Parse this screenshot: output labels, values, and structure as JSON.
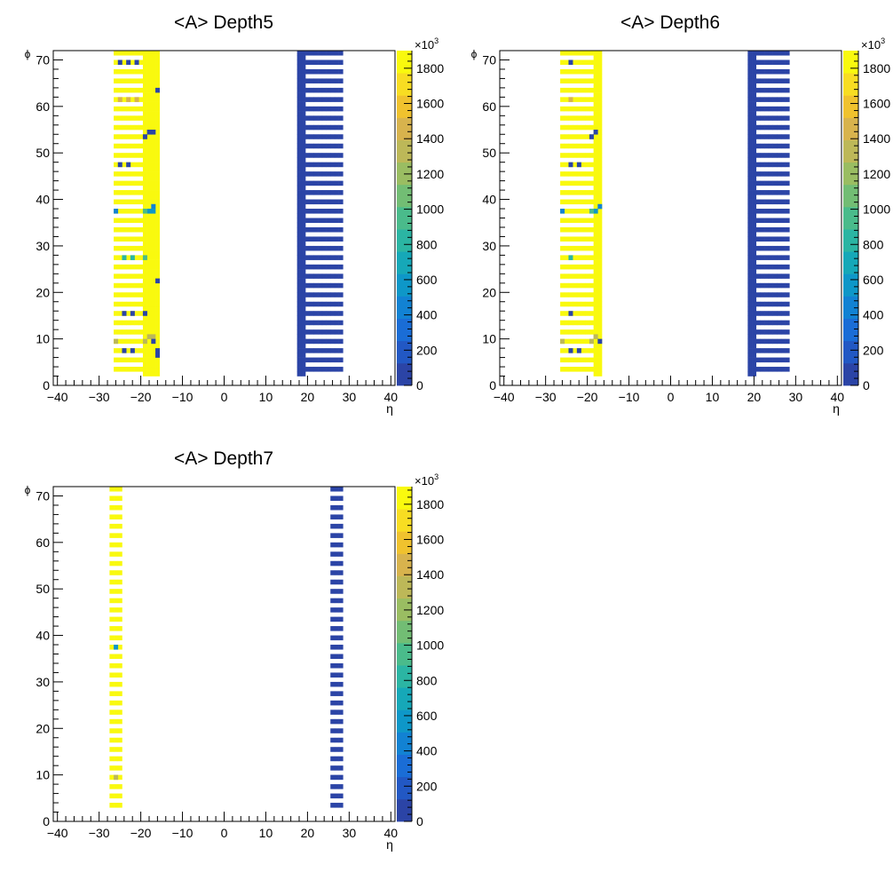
{
  "chart_data": [
    {
      "type": "heatmap",
      "title": "<A> Depth5",
      "xlabel": "η",
      "ylabel": "ϕ",
      "xlim": [
        -41,
        41
      ],
      "ylim": [
        0,
        72
      ],
      "xticks": [
        "−40",
        "−30",
        "−20",
        "−10",
        "0",
        "10",
        "20",
        "30",
        "40"
      ],
      "yticks": [
        "0",
        "10",
        "20",
        "30",
        "40",
        "50",
        "60",
        "70"
      ],
      "colorbar": {
        "exponent_label": "×10",
        "exponent": "3",
        "min": 0,
        "max": 1900,
        "ticks": [
          "0",
          "200",
          "400",
          "600",
          "800",
          "1000",
          "1200",
          "1400",
          "1600",
          "1800"
        ]
      },
      "regions": [
        {
          "eta": [
            -26,
            -20
          ],
          "phi_odd_only": true,
          "value": 1900
        },
        {
          "eta": [
            -19,
            -16
          ],
          "phi_odd_only": false,
          "value": 1900
        },
        {
          "eta": [
            18,
            19
          ],
          "phi_odd_only": false,
          "value": 40
        },
        {
          "eta": [
            20,
            28
          ],
          "phi_odd_only": true,
          "value": 40
        }
      ],
      "special_cells": [
        {
          "eta": -25,
          "phi": 69,
          "value": 60
        },
        {
          "eta": -23,
          "phi": 69,
          "value": 60
        },
        {
          "eta": -21,
          "phi": 69,
          "value": 60
        },
        {
          "eta": -16,
          "phi": 63,
          "value": 60
        },
        {
          "eta": -25,
          "phi": 61,
          "value": 1450
        },
        {
          "eta": -23,
          "phi": 61,
          "value": 1450
        },
        {
          "eta": -21,
          "phi": 61,
          "value": 1450
        },
        {
          "eta": -18,
          "phi": 54,
          "value": 60
        },
        {
          "eta": -17,
          "phi": 54,
          "value": 60
        },
        {
          "eta": -19,
          "phi": 53,
          "value": 60
        },
        {
          "eta": -25,
          "phi": 47,
          "value": 60
        },
        {
          "eta": -23,
          "phi": 47,
          "value": 60
        },
        {
          "eta": -17,
          "phi": 38,
          "value": 400
        },
        {
          "eta": -18,
          "phi": 37,
          "value": 600
        },
        {
          "eta": -17,
          "phi": 37,
          "value": 600
        },
        {
          "eta": -26,
          "phi": 37,
          "value": 500
        },
        {
          "eta": -19,
          "phi": 37,
          "value": 900
        },
        {
          "eta": -24,
          "phi": 27,
          "value": 800
        },
        {
          "eta": -22,
          "phi": 27,
          "value": 800
        },
        {
          "eta": -19,
          "phi": 27,
          "value": 900
        },
        {
          "eta": -16,
          "phi": 22,
          "value": 60
        },
        {
          "eta": -24,
          "phi": 15,
          "value": 60
        },
        {
          "eta": -22,
          "phi": 15,
          "value": 60
        },
        {
          "eta": -19,
          "phi": 15,
          "value": 60
        },
        {
          "eta": -18,
          "phi": 10,
          "value": 1300
        },
        {
          "eta": -17,
          "phi": 10,
          "value": 1300
        },
        {
          "eta": -26,
          "phi": 9,
          "value": 1300
        },
        {
          "eta": -19,
          "phi": 9,
          "value": 1300
        },
        {
          "eta": -17,
          "phi": 9,
          "value": 60
        },
        {
          "eta": -24,
          "phi": 7,
          "value": 60
        },
        {
          "eta": -22,
          "phi": 7,
          "value": 60
        },
        {
          "eta": -16,
          "phi": 7,
          "value": 60
        },
        {
          "eta": -16,
          "phi": 6,
          "value": 60
        }
      ]
    },
    {
      "type": "heatmap",
      "title": "<A> Depth6",
      "xlabel": "η",
      "ylabel": "ϕ",
      "xlim": [
        -41,
        41
      ],
      "ylim": [
        0,
        72
      ],
      "xticks": [
        "−40",
        "−30",
        "−20",
        "−10",
        "0",
        "10",
        "20",
        "30",
        "40"
      ],
      "yticks": [
        "0",
        "10",
        "20",
        "30",
        "40",
        "50",
        "60",
        "70"
      ],
      "colorbar": {
        "exponent_label": "×10",
        "exponent": "3",
        "min": 0,
        "max": 1900,
        "ticks": [
          "0",
          "200",
          "400",
          "600",
          "800",
          "1000",
          "1200",
          "1400",
          "1600",
          "1800"
        ]
      },
      "regions": [
        {
          "eta": [
            -26,
            -19
          ],
          "phi_odd_only": true,
          "value": 1900
        },
        {
          "eta": [
            -18,
            -17
          ],
          "phi_odd_only": false,
          "value": 1900
        },
        {
          "eta": [
            19,
            20
          ],
          "phi_odd_only": false,
          "value": 40
        },
        {
          "eta": [
            21,
            28
          ],
          "phi_odd_only": true,
          "value": 40
        }
      ],
      "special_cells": [
        {
          "eta": -24,
          "phi": 69,
          "value": 60
        },
        {
          "eta": -24,
          "phi": 61,
          "value": 1450
        },
        {
          "eta": -19,
          "phi": 53,
          "value": 60
        },
        {
          "eta": -18,
          "phi": 54,
          "value": 60
        },
        {
          "eta": -24,
          "phi": 47,
          "value": 60
        },
        {
          "eta": -22,
          "phi": 47,
          "value": 60
        },
        {
          "eta": -18,
          "phi": 37,
          "value": 600
        },
        {
          "eta": -17,
          "phi": 38,
          "value": 400
        },
        {
          "eta": -26,
          "phi": 37,
          "value": 500
        },
        {
          "eta": -19,
          "phi": 37,
          "value": 900
        },
        {
          "eta": -24,
          "phi": 27,
          "value": 800
        },
        {
          "eta": -24,
          "phi": 15,
          "value": 60
        },
        {
          "eta": -18,
          "phi": 10,
          "value": 1300
        },
        {
          "eta": -26,
          "phi": 9,
          "value": 1300
        },
        {
          "eta": -19,
          "phi": 9,
          "value": 1300
        },
        {
          "eta": -17,
          "phi": 9,
          "value": 60
        },
        {
          "eta": -24,
          "phi": 7,
          "value": 60
        },
        {
          "eta": -22,
          "phi": 7,
          "value": 60
        }
      ]
    },
    {
      "type": "heatmap",
      "title": "<A> Depth7",
      "xlabel": "η",
      "ylabel": "ϕ",
      "xlim": [
        -41,
        41
      ],
      "ylim": [
        0,
        72
      ],
      "xticks": [
        "−40",
        "−30",
        "−20",
        "−10",
        "0",
        "10",
        "20",
        "30",
        "40"
      ],
      "yticks": [
        "0",
        "10",
        "20",
        "30",
        "40",
        "50",
        "60",
        "70"
      ],
      "colorbar": {
        "exponent_label": "×10",
        "exponent": "3",
        "min": 0,
        "max": 1900,
        "ticks": [
          "0",
          "200",
          "400",
          "600",
          "800",
          "1000",
          "1200",
          "1400",
          "1600",
          "1800"
        ]
      },
      "regions": [
        {
          "eta": [
            -27,
            -25
          ],
          "phi_odd_only": true,
          "value": 1900
        },
        {
          "eta": [
            26,
            28
          ],
          "phi_odd_only": true,
          "value": 40
        }
      ],
      "special_cells": [
        {
          "eta": -26,
          "phi": 37,
          "value": 600
        },
        {
          "eta": -26,
          "phi": 9,
          "value": 1300
        }
      ]
    }
  ]
}
